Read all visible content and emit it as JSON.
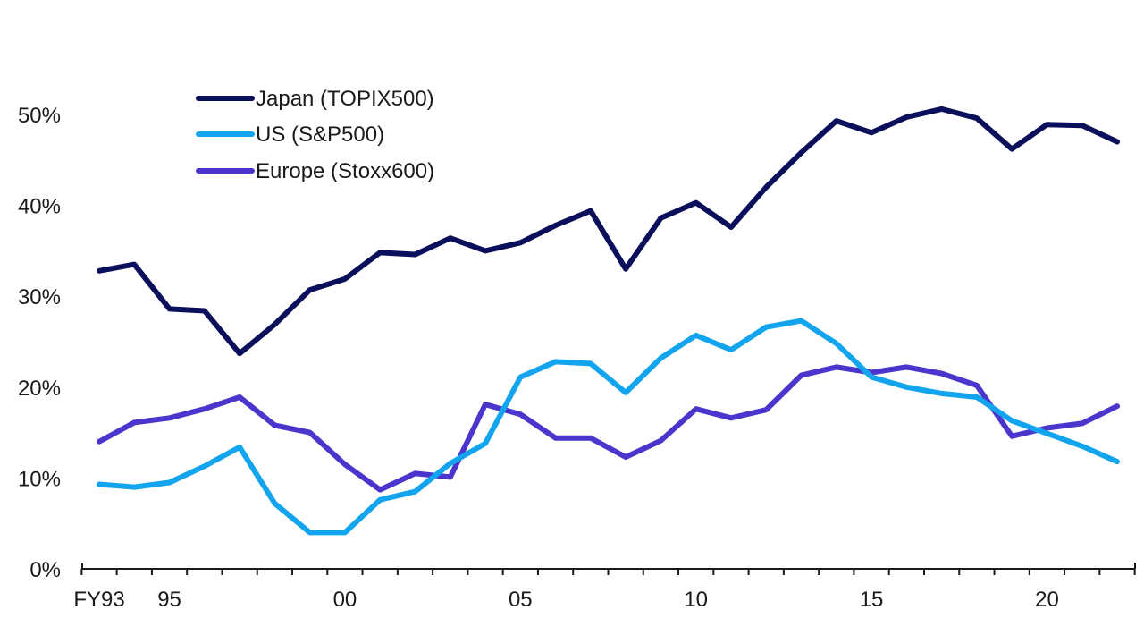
{
  "chart_data": {
    "type": "line",
    "x": [
      "FY93",
      "94",
      "95",
      "96",
      "97",
      "98",
      "99",
      "00",
      "01",
      "02",
      "03",
      "04",
      "05",
      "06",
      "07",
      "08",
      "09",
      "10",
      "11",
      "12",
      "13",
      "14",
      "15",
      "16",
      "17",
      "18",
      "19",
      "20",
      "21",
      "22"
    ],
    "x_tick_labels": [
      "FY93",
      "95",
      "00",
      "05",
      "10",
      "15",
      "20"
    ],
    "y_tick_labels": [
      "0%",
      "10%",
      "20%",
      "30%",
      "40%",
      "50%"
    ],
    "ylim": [
      0,
      50
    ],
    "grid": false,
    "legend_position": "top-left",
    "series": [
      {
        "name": "Japan (TOPIX500)",
        "color": "#0a0f5c",
        "values": [
          32.8,
          33.5,
          28.6,
          28.4,
          23.7,
          26.9,
          30.7,
          31.9,
          34.8,
          34.6,
          36.4,
          35.0,
          35.9,
          37.8,
          39.4,
          33.0,
          38.6,
          40.3,
          37.6,
          42.0,
          45.8,
          49.3,
          48.0,
          49.7,
          50.6,
          49.6,
          46.2,
          48.9,
          48.8,
          47.0
        ]
      },
      {
        "name": "US (S&P500)",
        "color": "#12a4ee",
        "values": [
          9.3,
          9.0,
          9.5,
          11.3,
          13.4,
          7.2,
          4.0,
          4.0,
          7.6,
          8.5,
          11.6,
          13.8,
          21.1,
          22.8,
          22.6,
          19.4,
          23.2,
          25.7,
          24.1,
          26.6,
          27.3,
          24.8,
          21.1,
          20.0,
          19.3,
          18.9,
          16.3,
          14.9,
          13.5,
          11.8
        ]
      },
      {
        "name": "Europe (Stoxx600)",
        "color": "#4a36cc",
        "values": [
          14.0,
          16.1,
          16.6,
          17.6,
          18.9,
          15.8,
          15.0,
          11.5,
          8.7,
          10.5,
          10.1,
          18.1,
          17.0,
          14.4,
          14.4,
          12.3,
          14.1,
          17.6,
          16.6,
          17.5,
          21.3,
          22.2,
          21.6,
          22.2,
          21.5,
          20.2,
          14.6,
          15.5,
          16.0,
          17.9
        ]
      }
    ]
  }
}
